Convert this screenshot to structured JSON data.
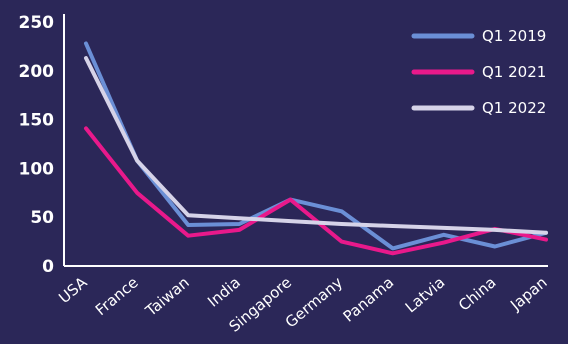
{
  "chart_data": {
    "type": "line",
    "title": "",
    "xlabel": "",
    "ylabel": "",
    "categories": [
      "USA",
      "France",
      "Taiwan",
      "India",
      "Singapore",
      "Germany",
      "Panama",
      "Latvia",
      "China",
      "Japan"
    ],
    "ylim": [
      0,
      250
    ],
    "yticks": [
      0,
      50,
      100,
      150,
      200,
      250
    ],
    "grid": false,
    "legend_position": "top-right",
    "series": [
      {
        "name": "Q1 2019",
        "color": "#6b8fd6",
        "values": [
          228,
          108,
          42,
          43,
          68,
          56,
          18,
          32,
          20,
          34
        ]
      },
      {
        "name": "Q1 2021",
        "color": "#e8198b",
        "values": [
          141,
          75,
          31,
          37,
          68,
          25,
          13,
          24,
          38,
          27
        ]
      },
      {
        "name": "Q1 2022",
        "color": "#d6d3e8",
        "values": [
          213,
          108,
          52,
          49,
          46,
          43,
          41,
          39,
          37,
          34
        ]
      }
    ]
  }
}
